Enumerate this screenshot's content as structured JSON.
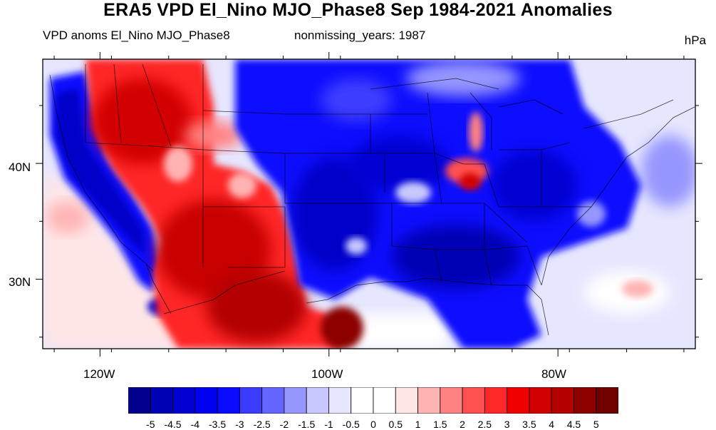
{
  "figure": {
    "title": "ERA5 VPD El_Nino MJO_Phase8 Sep 1984-2021 Anomalies",
    "subtitle_left": "VPD anoms El_Nino MJO_Phase8",
    "subtitle_center": "nonmissing_years: 1987",
    "units": "hPa"
  },
  "axes": {
    "lat_labels": [
      {
        "label": "40N",
        "value": 40
      },
      {
        "label": "30N",
        "value": 30
      }
    ],
    "lon_labels": [
      {
        "label": "120W",
        "value": -120
      },
      {
        "label": "100W",
        "value": -100
      },
      {
        "label": "80W",
        "value": -80
      }
    ],
    "lon_range": [
      -125,
      -68
    ],
    "lat_range": [
      24,
      49
    ]
  },
  "colorbar": {
    "labels": [
      "-5",
      "-4.5",
      "-4",
      "-3.5",
      "-3",
      "-2.5",
      "-2",
      "-1.5",
      "-1",
      "-0.5",
      "0",
      "0.5",
      "1",
      "1.5",
      "2",
      "2.5",
      "3",
      "3.5",
      "4",
      "4.5",
      "5"
    ],
    "colors": [
      "#00008c",
      "#0000b4",
      "#0000d2",
      "#0000f0",
      "#0a0aff",
      "#3c3cff",
      "#6464ff",
      "#9696ff",
      "#c8c8ff",
      "#e6e6ff",
      "#ffffff",
      "#ffffff",
      "#ffe6e6",
      "#ffb4b4",
      "#ff8282",
      "#ff5050",
      "#ff2828",
      "#f00000",
      "#d20000",
      "#b40000",
      "#8c0000",
      "#6e0000"
    ]
  },
  "field_regions": {
    "west_coast": "strong negative",
    "interior_west": "strong positive",
    "mexico_texas": "strong positive",
    "central_east": "strong negative",
    "lake_michigan_illinois": "moderate positive",
    "atlantic": "weak negative / weak positive",
    "pacific_offshore": "weak positive"
  }
}
